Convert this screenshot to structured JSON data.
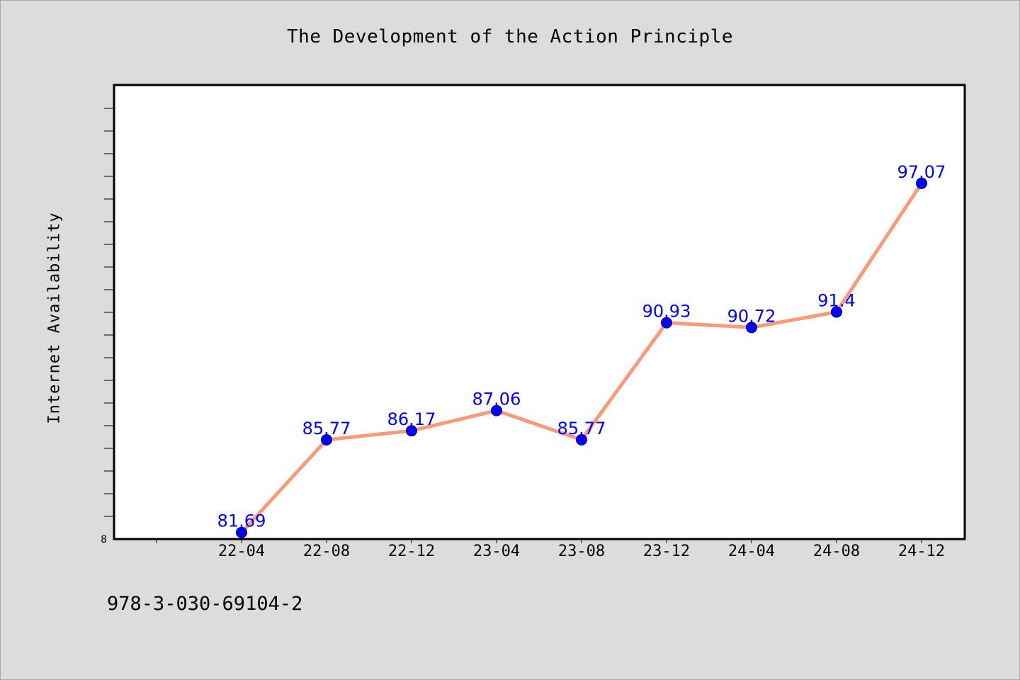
{
  "colors": {
    "background": "#dcdcdc",
    "plot_background": "#ffffff",
    "line": "#fa9a78",
    "marker": "#0000ff",
    "data_label": "#0000ff"
  },
  "footer": {
    "isbn": "978-3-030-69104-2"
  },
  "chart_data": {
    "type": "line",
    "title": "The Development of the Action Principle",
    "xlabel": "",
    "ylabel": "Internet Availability",
    "categories": [
      "22-04",
      "22-08",
      "22-12",
      "23-04",
      "23-08",
      "23-12",
      "24-04",
      "24-08",
      "24-12"
    ],
    "series": [
      {
        "values": [
          81.69,
          85.77,
          86.17,
          87.06,
          85.77,
          90.93,
          90.72,
          91.4,
          97.07
        ]
      }
    ],
    "data_labels": [
      "81.69",
      "85.77",
      "86.17",
      "87.06",
      "85.77",
      "90.93",
      "90.72",
      "91.4",
      "97.07"
    ],
    "ylim": [
      81.4,
      101.4
    ],
    "y_tick_label": "8",
    "grid": false,
    "legend": "none"
  }
}
